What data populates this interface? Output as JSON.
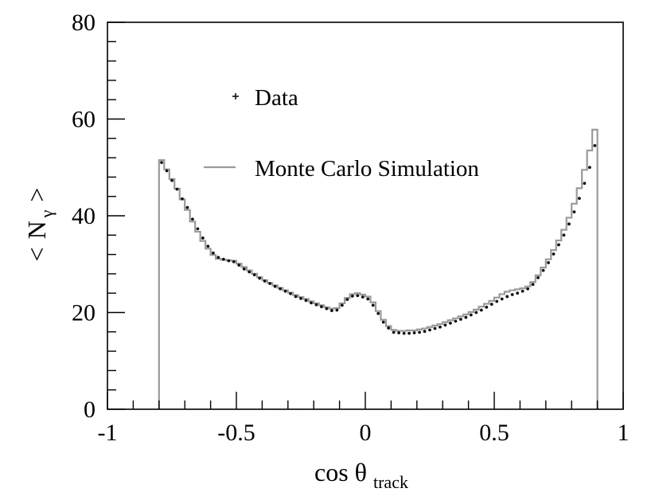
{
  "chart_data": {
    "type": "line",
    "xlabel": {
      "main": "cos θ",
      "sub": "track"
    },
    "ylabel": {
      "prefix": "<",
      "symbol": "N",
      "sub": "γ",
      "suffix": ">"
    },
    "xlim": [
      -1,
      1
    ],
    "ylim": [
      0,
      80
    ],
    "x_ticks": [
      {
        "value": -1,
        "label": "-1"
      },
      {
        "value": -0.5,
        "label": "-0.5"
      },
      {
        "value": 0,
        "label": "0"
      },
      {
        "value": 0.5,
        "label": "0.5"
      },
      {
        "value": 1,
        "label": "1"
      }
    ],
    "y_ticks": [
      {
        "value": 0,
        "label": "0"
      },
      {
        "value": 20,
        "label": "20"
      },
      {
        "value": 40,
        "label": "40"
      },
      {
        "value": 60,
        "label": "60"
      },
      {
        "value": 80,
        "label": "80"
      }
    ],
    "grid": false,
    "legend": {
      "placement": "top-center"
    },
    "series": [
      {
        "name": "Data",
        "style": "points",
        "color": "#111111",
        "x": [
          -0.79,
          -0.77,
          -0.75,
          -0.73,
          -0.71,
          -0.69,
          -0.67,
          -0.65,
          -0.63,
          -0.61,
          -0.59,
          -0.57,
          -0.55,
          -0.53,
          -0.51,
          -0.49,
          -0.47,
          -0.45,
          -0.43,
          -0.41,
          -0.39,
          -0.37,
          -0.35,
          -0.33,
          -0.31,
          -0.29,
          -0.27,
          -0.25,
          -0.23,
          -0.21,
          -0.19,
          -0.17,
          -0.15,
          -0.13,
          -0.11,
          -0.09,
          -0.07,
          -0.05,
          -0.03,
          -0.01,
          0.01,
          0.03,
          0.05,
          0.07,
          0.09,
          0.11,
          0.13,
          0.15,
          0.17,
          0.19,
          0.21,
          0.23,
          0.25,
          0.27,
          0.29,
          0.31,
          0.33,
          0.35,
          0.37,
          0.39,
          0.41,
          0.43,
          0.45,
          0.47,
          0.49,
          0.51,
          0.53,
          0.55,
          0.57,
          0.59,
          0.61,
          0.63,
          0.65,
          0.67,
          0.69,
          0.71,
          0.73,
          0.75,
          0.77,
          0.79,
          0.81,
          0.83,
          0.85,
          0.87,
          0.89
        ],
        "y": [
          51,
          49.3,
          47.3,
          45.5,
          43.5,
          41.7,
          39.3,
          37.3,
          35.4,
          33.7,
          32.3,
          31.4,
          31.0,
          30.7,
          30.5,
          29.8,
          29.0,
          28.4,
          27.8,
          27.1,
          26.5,
          26.0,
          25.4,
          24.9,
          24.4,
          23.9,
          23.3,
          22.9,
          22.5,
          22.0,
          21.6,
          21.2,
          20.8,
          20.4,
          20.5,
          21.5,
          22.7,
          23.4,
          23.5,
          23.2,
          22.8,
          21.5,
          19.8,
          18.0,
          16.8,
          15.9,
          15.8,
          15.7,
          15.7,
          15.8,
          15.9,
          16.1,
          16.4,
          16.7,
          17.0,
          17.4,
          17.8,
          18.2,
          18.6,
          19.0,
          19.5,
          20.0,
          20.5,
          21.1,
          21.7,
          22.3,
          22.8,
          23.3,
          23.7,
          24.0,
          24.4,
          24.9,
          25.8,
          27.2,
          28.7,
          30.3,
          32.1,
          34.0,
          36.0,
          38.3,
          40.8,
          43.6,
          46.7,
          50.0,
          54.5
        ]
      },
      {
        "name": "Monte Carlo Simulation",
        "style": "step",
        "color": "#9a9a9a",
        "x": [
          -0.79,
          -0.77,
          -0.75,
          -0.73,
          -0.71,
          -0.69,
          -0.67,
          -0.65,
          -0.63,
          -0.61,
          -0.59,
          -0.57,
          -0.55,
          -0.53,
          -0.51,
          -0.49,
          -0.47,
          -0.45,
          -0.43,
          -0.41,
          -0.39,
          -0.37,
          -0.35,
          -0.33,
          -0.31,
          -0.29,
          -0.27,
          -0.25,
          -0.23,
          -0.21,
          -0.19,
          -0.17,
          -0.15,
          -0.13,
          -0.11,
          -0.09,
          -0.07,
          -0.05,
          -0.03,
          -0.01,
          0.01,
          0.03,
          0.05,
          0.07,
          0.09,
          0.11,
          0.13,
          0.15,
          0.17,
          0.19,
          0.21,
          0.23,
          0.25,
          0.27,
          0.29,
          0.31,
          0.33,
          0.35,
          0.37,
          0.39,
          0.41,
          0.43,
          0.45,
          0.47,
          0.49,
          0.51,
          0.53,
          0.55,
          0.57,
          0.59,
          0.61,
          0.63,
          0.65,
          0.67,
          0.69,
          0.71,
          0.73,
          0.75,
          0.77,
          0.79,
          0.81,
          0.83,
          0.85,
          0.87,
          0.89
        ],
        "y": [
          51.5,
          49.6,
          47.6,
          45.6,
          43.4,
          41.2,
          38.8,
          36.7,
          34.8,
          33.2,
          31.9,
          31.1,
          30.9,
          30.8,
          30.7,
          30.1,
          29.4,
          28.7,
          28.0,
          27.3,
          26.7,
          26.1,
          25.6,
          25.1,
          24.6,
          24.1,
          23.6,
          23.2,
          22.8,
          22.3,
          21.9,
          21.5,
          21.1,
          20.8,
          20.9,
          21.9,
          23.0,
          23.8,
          24.0,
          23.7,
          23.3,
          22.1,
          20.3,
          18.5,
          17.2,
          16.4,
          16.2,
          16.2,
          16.3,
          16.3,
          16.5,
          16.7,
          17.0,
          17.3,
          17.6,
          18.0,
          18.4,
          18.8,
          19.2,
          19.6,
          20.1,
          20.6,
          21.2,
          21.8,
          22.4,
          23.1,
          23.8,
          24.3,
          24.6,
          24.8,
          25.0,
          25.4,
          26.3,
          27.7,
          29.3,
          31.0,
          32.9,
          34.9,
          37.1,
          39.6,
          42.5,
          45.7,
          49.5,
          53.5,
          57.8
        ]
      }
    ]
  }
}
